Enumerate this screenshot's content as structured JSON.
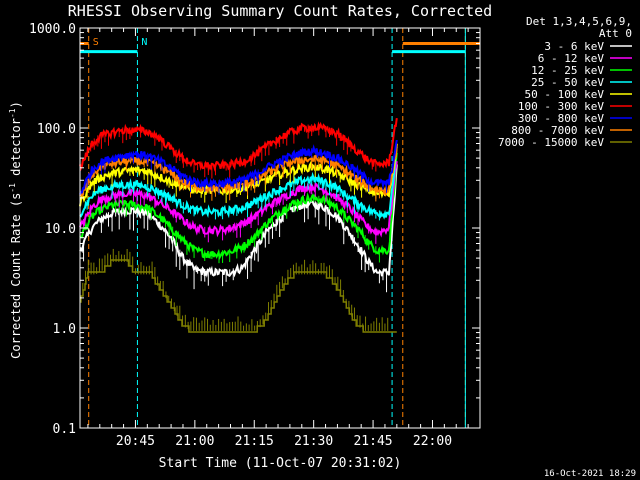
{
  "chart_data": {
    "type": "line",
    "title": "RHESSI Observing Summary Count Rates, Corrected",
    "xlabel": "Start Time (11-Oct-07 20:31:02)",
    "ylabel": "Corrected Count Rate (s⁻¹ detector⁻¹)",
    "ylabel_main": "Corrected Count Rate (s",
    "ylabel_sup1": "-1",
    "ylabel_mid": " detector",
    "ylabel_sup2": "-1",
    "ylabel_end": ")",
    "x_unit": "minutes after 20:31:02",
    "xlim": [
      0,
      101
    ],
    "ylim": [
      0.1,
      1000
    ],
    "yscale": "log",
    "x_ticks": [
      {
        "t": 14,
        "label": "20:45"
      },
      {
        "t": 29,
        "label": "21:00"
      },
      {
        "t": 44,
        "label": "21:15"
      },
      {
        "t": 59,
        "label": "21:30"
      },
      {
        "t": 74,
        "label": "21:45"
      },
      {
        "t": 89,
        "label": "22:00"
      }
    ],
    "y_ticks": [
      {
        "v": 0.1,
        "label": "0.1"
      },
      {
        "v": 1,
        "label": "1.0"
      },
      {
        "v": 10,
        "label": "10.0"
      },
      {
        "v": 100,
        "label": "100.0"
      },
      {
        "v": 1000,
        "label": "1000.0"
      }
    ],
    "legend_header": [
      "Det 1,3,4,5,6,9,",
      "Att 0"
    ],
    "legend_position": "right",
    "series": [
      {
        "name": "3 - 6 keV",
        "color": "#ffffff",
        "x": [
          0,
          3,
          5,
          8,
          11,
          14,
          17,
          20,
          23,
          26,
          29,
          32,
          35,
          38,
          41,
          44,
          47,
          50,
          53,
          56,
          59,
          62,
          65,
          68,
          71,
          73,
          75,
          78,
          80
        ],
        "values": [
          6,
          10,
          12,
          14,
          15,
          15,
          14,
          11,
          8,
          5,
          3.8,
          3.6,
          3.6,
          3.6,
          4,
          6,
          9,
          12,
          15,
          17,
          17.5,
          16,
          13,
          9,
          6,
          4.5,
          3.6,
          3.6,
          40
        ]
      },
      {
        "name": "6 - 12 keV",
        "color": "#ff00ff",
        "x": [
          0,
          3,
          5,
          8,
          11,
          14,
          17,
          20,
          23,
          26,
          29,
          32,
          35,
          38,
          41,
          44,
          47,
          50,
          53,
          56,
          59,
          62,
          65,
          68,
          71,
          73,
          75,
          78,
          80
        ],
        "values": [
          10,
          16,
          19,
          21,
          22,
          22,
          21,
          18,
          15,
          12,
          10,
          9.5,
          9.5,
          10,
          11,
          13,
          16,
          19,
          22,
          25,
          26,
          24,
          20,
          16,
          12,
          10,
          9,
          10,
          50
        ]
      },
      {
        "name": "12 - 25 keV",
        "color": "#00ff00",
        "x": [
          0,
          3,
          5,
          8,
          11,
          14,
          17,
          20,
          23,
          26,
          29,
          32,
          35,
          38,
          41,
          44,
          47,
          50,
          53,
          56,
          59,
          62,
          65,
          68,
          71,
          73,
          75,
          78,
          80
        ],
        "values": [
          8,
          13,
          15,
          17,
          17.5,
          17,
          16,
          13,
          10,
          7.5,
          6,
          5.5,
          5.5,
          5.8,
          6.5,
          8,
          11,
          14,
          17,
          19,
          20,
          19,
          16,
          12,
          9,
          7,
          6,
          6,
          55
        ]
      },
      {
        "name": "25 - 50 keV",
        "color": "#00ffff",
        "x": [
          0,
          3,
          5,
          8,
          11,
          14,
          17,
          20,
          23,
          26,
          29,
          32,
          35,
          38,
          41,
          44,
          47,
          50,
          53,
          56,
          59,
          62,
          65,
          68,
          71,
          73,
          75,
          78,
          80
        ],
        "values": [
          14,
          21,
          24,
          26,
          27,
          27,
          26,
          23,
          20,
          17,
          15,
          14.5,
          14.5,
          15,
          16,
          18,
          21,
          24,
          27,
          30,
          31,
          29,
          25,
          20,
          17,
          15,
          14,
          14,
          60
        ]
      },
      {
        "name": "50 - 100 keV",
        "color": "#ffff00",
        "x": [
          0,
          3,
          5,
          8,
          11,
          14,
          17,
          20,
          23,
          26,
          29,
          32,
          35,
          38,
          41,
          44,
          47,
          50,
          53,
          56,
          59,
          62,
          65,
          68,
          71,
          73,
          75,
          78,
          80
        ],
        "values": [
          18,
          28,
          32,
          35,
          37,
          38,
          37,
          33,
          29,
          26,
          24,
          23.5,
          23.5,
          24,
          25,
          27,
          30,
          34,
          37,
          40,
          41,
          39,
          35,
          30,
          26,
          24,
          22,
          22,
          65
        ]
      },
      {
        "name": "100 - 300 keV",
        "color": "#ff0000",
        "x": [
          0,
          3,
          5,
          8,
          11,
          14,
          17,
          20,
          23,
          26,
          29,
          32,
          35,
          38,
          41,
          44,
          47,
          50,
          53,
          56,
          59,
          62,
          65,
          68,
          71,
          73,
          75,
          78,
          80
        ],
        "values": [
          40,
          70,
          82,
          90,
          95,
          95,
          92,
          80,
          62,
          50,
          43,
          42,
          42,
          43,
          46,
          53,
          65,
          78,
          90,
          100,
          102,
          98,
          88,
          70,
          55,
          47,
          43,
          45,
          130
        ]
      },
      {
        "name": "300 - 800 keV",
        "color": "#0000ff",
        "x": [
          0,
          3,
          5,
          8,
          11,
          14,
          17,
          20,
          23,
          26,
          29,
          32,
          35,
          38,
          41,
          44,
          47,
          50,
          53,
          56,
          59,
          62,
          65,
          68,
          71,
          73,
          75,
          78,
          80
        ],
        "values": [
          22,
          38,
          45,
          50,
          53,
          55,
          53,
          47,
          40,
          33,
          29,
          28,
          28,
          28.5,
          30,
          34,
          40,
          46,
          52,
          57,
          59,
          56,
          50,
          42,
          34,
          30,
          28,
          28,
          70
        ]
      },
      {
        "name": "800 - 7000 keV",
        "color": "#ff8000",
        "x": [
          0,
          3,
          5,
          8,
          11,
          14,
          17,
          20,
          23,
          26,
          29,
          32,
          35,
          38,
          41,
          44,
          47,
          50,
          53,
          56,
          59,
          62,
          65,
          68,
          71,
          73,
          75,
          78,
          80
        ],
        "values": [
          20,
          34,
          40,
          44,
          46,
          47,
          46,
          41,
          35,
          29,
          26,
          25,
          25,
          25.5,
          27,
          30,
          35,
          40,
          45,
          48,
          49,
          47,
          42,
          35,
          29,
          26,
          24,
          24,
          65
        ]
      },
      {
        "name": "7000 - 15000 keV",
        "color": "#808000",
        "x": [
          0,
          2,
          4,
          6,
          8,
          10,
          12,
          14,
          16,
          18,
          20,
          22,
          24,
          26,
          28,
          30,
          32,
          34,
          36,
          38,
          40,
          42,
          44,
          46,
          48,
          50,
          52,
          54,
          56,
          58,
          60,
          62,
          64,
          66,
          68,
          70,
          72,
          74,
          76,
          78,
          80
        ],
        "values": [
          2,
          3.6,
          3.6,
          4,
          4.8,
          4.8,
          4.8,
          3.6,
          3.6,
          3.6,
          2.6,
          2,
          1.5,
          1.1,
          0.98,
          0.98,
          0.98,
          0.98,
          0.98,
          0.98,
          0.98,
          0.98,
          0.98,
          1.1,
          1.5,
          2.2,
          3,
          3.6,
          3.6,
          3.6,
          3.6,
          3.6,
          3,
          2.2,
          1.5,
          1.1,
          0.98,
          0.98,
          0.98,
          0.98,
          0.98
        ]
      }
    ],
    "intervals": [
      {
        "kind": "night",
        "label": "",
        "color": "#00ffff",
        "start": 0,
        "end": 0
      },
      {
        "kind": "saa",
        "label": "S",
        "color": "#ff8000",
        "start": 2.2,
        "end": 0
      },
      {
        "kind": "night",
        "label": "N",
        "color": "#00ffff",
        "start": 14.5,
        "end": 0
      },
      {
        "kind": "night",
        "label": "",
        "color": "#00ffff",
        "start": 78.8,
        "end": 0
      },
      {
        "kind": "saa",
        "label": "",
        "color": "#ff8000",
        "start": 81.5,
        "end": 0
      },
      {
        "kind": "saa",
        "label": "",
        "color": "#ff8000",
        "start": 97.3,
        "end": 0
      },
      {
        "kind": "night",
        "label": "",
        "color": "#00ffff",
        "start": 97.3,
        "end": 0
      }
    ],
    "flag_bars": [
      {
        "color": "#00ffff",
        "x0": 0,
        "x1": 14.5,
        "y": 580
      },
      {
        "color": "#ff8000",
        "x0": 0,
        "x1": 2.2,
        "y": 700
      },
      {
        "color": "#00ffff",
        "x0": 78.8,
        "x1": 97.3,
        "y": 580
      },
      {
        "color": "#ff8000",
        "x0": 81.5,
        "x1": 101,
        "y": 700
      }
    ]
  },
  "footer": {
    "date_stamp": "16-Oct-2021 18:29"
  }
}
